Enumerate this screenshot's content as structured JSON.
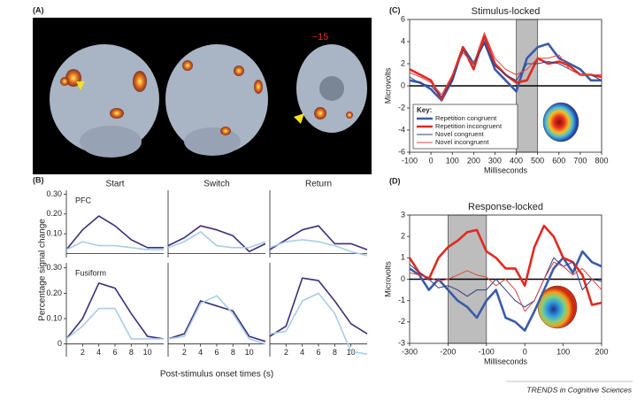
{
  "panels": [
    "(A)",
    "(B)",
    "(C)",
    "(D)"
  ],
  "panel_a": {
    "slice_label": "−15"
  },
  "panel_b": {
    "ylabel": "Percentage signal change",
    "xlabel": "Post-stimulus onset times (s)"
  },
  "footer": "TRENDS in Cognitive Sciences",
  "chart_data": [
    {
      "type": "line",
      "title": "Start",
      "label": "PFC",
      "frame": "axes",
      "x": [
        0,
        2,
        4,
        6,
        8,
        10,
        12
      ],
      "xlim": [
        0,
        12
      ],
      "ylim": [
        -0.02,
        0.32
      ],
      "yticks": [
        {
          "value": 0.1,
          "label": "0.10"
        },
        {
          "value": 0.2,
          "label": "0.20"
        },
        {
          "value": 0.3,
          "label": "0.30"
        }
      ],
      "series": [
        {
          "color": "#3b2f7a",
          "width": 1.6,
          "values": [
            0.02,
            0.12,
            0.19,
            0.14,
            0.07,
            0.03,
            0.03
          ]
        },
        {
          "color": "#a9cde6",
          "width": 1.6,
          "values": [
            0.02,
            0.06,
            0.04,
            0.04,
            0.03,
            0.02,
            0.02
          ]
        }
      ]
    },
    {
      "type": "line",
      "title": "Switch",
      "frame": "axes",
      "x": [
        0,
        2,
        4,
        6,
        8,
        10,
        12
      ],
      "xlim": [
        0,
        12
      ],
      "ylim": [
        -0.02,
        0.32
      ],
      "series": [
        {
          "color": "#3b2f7a",
          "width": 1.6,
          "values": [
            0.04,
            0.08,
            0.14,
            0.12,
            0.09,
            0.01,
            0.05
          ]
        },
        {
          "color": "#a9cde6",
          "width": 1.6,
          "values": [
            0.03,
            0.06,
            0.11,
            0.04,
            0.03,
            0.03,
            0.06
          ]
        }
      ]
    },
    {
      "type": "line",
      "title": "Return",
      "frame": "axes",
      "x": [
        0,
        2,
        4,
        6,
        8,
        10,
        12
      ],
      "xlim": [
        0,
        12
      ],
      "ylim": [
        -0.02,
        0.32
      ],
      "series": [
        {
          "color": "#3b2f7a",
          "width": 1.6,
          "values": [
            0.02,
            0.07,
            0.12,
            0.14,
            0.05,
            0.05,
            0.02
          ]
        },
        {
          "color": "#a9cde6",
          "width": 1.6,
          "values": [
            0.03,
            0.06,
            0.07,
            0.06,
            0.04,
            0.01,
            -0.01
          ]
        }
      ]
    },
    {
      "type": "line",
      "label": "Fusiform",
      "frame": "axes",
      "x": [
        0,
        2,
        4,
        6,
        8,
        10,
        12
      ],
      "xlim": [
        0,
        12
      ],
      "ylim": [
        -0.05,
        0.32
      ],
      "xticks": [
        2,
        4,
        6,
        8,
        10
      ],
      "yticks": [
        0,
        {
          "value": 0.1,
          "label": "0.10"
        },
        {
          "value": 0.2,
          "label": "0.20"
        },
        {
          "value": 0.3,
          "label": "0.30"
        }
      ],
      "series": [
        {
          "color": "#3b2f7a",
          "width": 1.6,
          "values": [
            0.02,
            0.1,
            0.24,
            0.22,
            0.12,
            0.03,
            0.02
          ]
        },
        {
          "color": "#a9cde6",
          "width": 1.6,
          "values": [
            0.02,
            0.07,
            0.14,
            0.14,
            0.02,
            0.02,
            0.02
          ]
        }
      ]
    },
    {
      "type": "line",
      "frame": "axes",
      "x": [
        0,
        2,
        4,
        6,
        8,
        10,
        12
      ],
      "xlim": [
        0,
        12
      ],
      "ylim": [
        -0.05,
        0.32
      ],
      "xticks": [
        2,
        4,
        6,
        8,
        10
      ],
      "series": [
        {
          "color": "#3b2f7a",
          "width": 1.6,
          "values": [
            0.02,
            0.04,
            0.17,
            0.15,
            0.13,
            0.03,
            0.01
          ]
        },
        {
          "color": "#a9cde6",
          "width": 1.6,
          "values": [
            0.02,
            0.03,
            0.16,
            0.19,
            0.12,
            0.02,
            0.0
          ]
        }
      ]
    },
    {
      "type": "line",
      "frame": "axes",
      "x": [
        0,
        2,
        4,
        6,
        8,
        10,
        12
      ],
      "xlim": [
        0,
        12
      ],
      "ylim": [
        -0.05,
        0.32
      ],
      "xticks": [
        2,
        4,
        6,
        8,
        10
      ],
      "series": [
        {
          "color": "#3b2f7a",
          "width": 1.6,
          "values": [
            0.03,
            0.07,
            0.26,
            0.25,
            0.17,
            0.08,
            0.04
          ]
        },
        {
          "color": "#a9cde6",
          "width": 1.6,
          "values": [
            0.04,
            0.05,
            0.17,
            0.2,
            0.12,
            -0.03,
            -0.04
          ]
        }
      ]
    },
    {
      "type": "line",
      "title": "Stimulus-locked",
      "ylabel": "Microvolts",
      "xlabel": "Milliseconds",
      "frame": "box",
      "zero_line": true,
      "shade": [
        400,
        500
      ],
      "legend": "lower left",
      "legend_title": "Key:",
      "xlim": [
        -100,
        800
      ],
      "xticks": [
        -100,
        0,
        100,
        200,
        300,
        400,
        500,
        600,
        700,
        800
      ],
      "ylim": [
        -6,
        6
      ],
      "yticks": [
        -6,
        -4,
        -2,
        0,
        2,
        4,
        6
      ],
      "x": [
        -100,
        -50,
        0,
        50,
        100,
        150,
        200,
        250,
        300,
        350,
        400,
        450,
        500,
        550,
        600,
        650,
        700,
        750,
        800
      ],
      "series": [
        {
          "name": "Repetition congruent",
          "color": "#3a5ba8",
          "width": 2.6,
          "values": [
            0.5,
            0.3,
            -0.3,
            -1.3,
            0.5,
            3.5,
            2,
            4,
            1.5,
            0.5,
            -0.5,
            2.5,
            3.5,
            3.8,
            2.5,
            2,
            1.5,
            0.5,
            0.5
          ]
        },
        {
          "name": "Repetition incongruent",
          "color": "#e02a20",
          "width": 2.6,
          "values": [
            1.5,
            1,
            0.5,
            -1.2,
            0.8,
            3.5,
            1.5,
            4.5,
            2,
            1,
            0.3,
            0.5,
            2.5,
            2,
            2.2,
            1.8,
            1,
            1,
            0.8
          ]
        },
        {
          "name": "Novel congruent",
          "color": "#2c3f8a",
          "width": 1,
          "values": [
            0.8,
            0.2,
            0,
            -1,
            0.5,
            3.2,
            2,
            3.8,
            1.8,
            1,
            0.5,
            2,
            2,
            2.2,
            2,
            1.5,
            1,
            1,
            0.5
          ]
        },
        {
          "name": "Novel incongruent",
          "color": "#e0453a",
          "width": 1,
          "values": [
            1.2,
            0.8,
            0.3,
            -0.8,
            1,
            3,
            2,
            4.8,
            2.5,
            1.5,
            1,
            1.5,
            2.5,
            2.5,
            2.8,
            1.5,
            1,
            1,
            1
          ]
        }
      ]
    },
    {
      "type": "line",
      "title": "Response-locked",
      "ylabel": "Microvolts",
      "xlabel": "Milliseconds",
      "frame": "box",
      "zero_line": true,
      "shade": [
        -200,
        -100
      ],
      "xlim": [
        -300,
        200
      ],
      "xticks": [
        -300,
        -200,
        -100,
        0,
        100,
        200
      ],
      "ylim": [
        -3,
        3
      ],
      "yticks": [
        -3,
        -2,
        -1,
        0,
        1,
        2,
        3
      ],
      "x": [
        -300,
        -275,
        -250,
        -225,
        -200,
        -175,
        -150,
        -125,
        -100,
        -75,
        -50,
        -25,
        0,
        25,
        50,
        75,
        100,
        125,
        150,
        175,
        200
      ],
      "series": [
        {
          "color": "#3a5ba8",
          "width": 2.6,
          "values": [
            0.5,
            0.2,
            -0.5,
            0,
            -0.5,
            -1,
            -1.3,
            -1.8,
            -1,
            -0.5,
            -1.8,
            -2,
            -2.4,
            -1.5,
            -0.5,
            0.5,
            1,
            0.3,
            1.3,
            0.8,
            0.6
          ]
        },
        {
          "color": "#e02a20",
          "width": 2.6,
          "values": [
            1,
            0.3,
            0,
            1,
            1.5,
            1.8,
            2.2,
            2.3,
            1.3,
            1,
            0.5,
            0.5,
            -0.3,
            1.5,
            2.5,
            2,
            1,
            0.8,
            0.2,
            -1.2,
            -1.1
          ]
        },
        {
          "color": "#2c3f8a",
          "width": 1,
          "values": [
            0.7,
            0.3,
            0,
            -0.4,
            -0.3,
            -0.5,
            -0.8,
            -0.5,
            -0.5,
            0,
            -0.5,
            -1,
            -1.3,
            -1,
            0,
            1,
            0.6,
            0.8,
            -0.5,
            0,
            -0.1
          ]
        },
        {
          "color": "#e0453a",
          "width": 1,
          "values": [
            0.3,
            0.2,
            0.1,
            -0.1,
            0,
            0.2,
            0.4,
            0.2,
            0.1,
            -0.3,
            0,
            -0.5,
            -1.5,
            -1,
            0,
            0.8,
            0.6,
            0.2,
            0.5,
            0,
            -0.5
          ]
        }
      ]
    }
  ]
}
